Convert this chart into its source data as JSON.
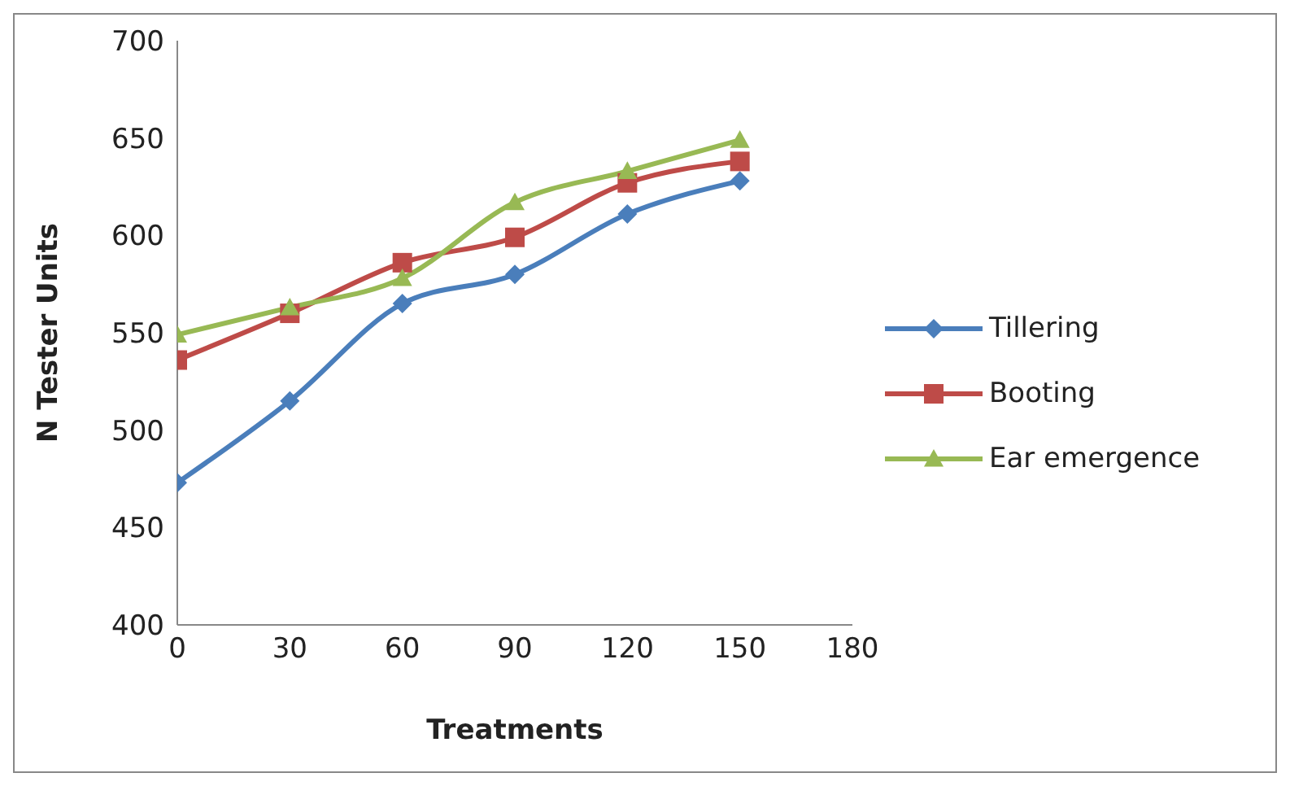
{
  "chart_data": {
    "type": "line",
    "xlabel": "Treatments",
    "ylabel": "N Tester Units",
    "x": [
      0,
      30,
      60,
      90,
      120,
      150
    ],
    "xlim": [
      0,
      180
    ],
    "xticks": [
      0,
      30,
      60,
      90,
      120,
      150,
      180
    ],
    "ylim": [
      400,
      700
    ],
    "yticks": [
      400,
      450,
      500,
      550,
      600,
      650,
      700
    ],
    "grid": false,
    "legend": "right",
    "series": [
      {
        "name": "Tillering",
        "color": "#4a7ebb",
        "marker": "diamond",
        "values": [
          473,
          515,
          565,
          580,
          611,
          628
        ]
      },
      {
        "name": "Booting",
        "color": "#be4b48",
        "marker": "square",
        "values": [
          536,
          560,
          586,
          599,
          627,
          638
        ]
      },
      {
        "name": "Ear emergence",
        "color": "#98b954",
        "marker": "triangle",
        "values": [
          549,
          563,
          578,
          617,
          633,
          649
        ]
      }
    ]
  }
}
